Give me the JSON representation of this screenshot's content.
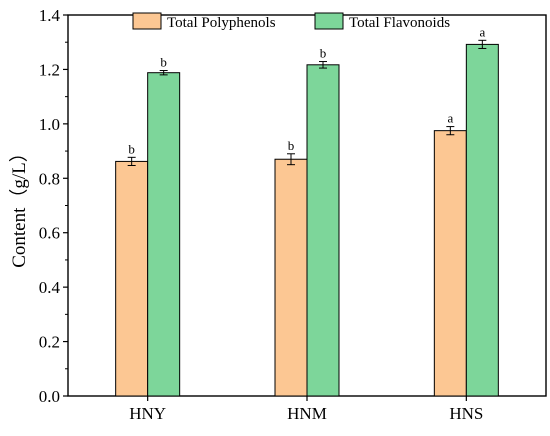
{
  "chart_data": {
    "type": "bar",
    "title": "",
    "xlabel": "",
    "ylabel": "Content（g/L）",
    "ylim": [
      0,
      1.4
    ],
    "yticks": [
      "0.0",
      "0.2",
      "0.4",
      "0.6",
      "0.8",
      "1.0",
      "1.2",
      "1.4"
    ],
    "grid": false,
    "legend_position": "top-center",
    "categories": [
      "HNY",
      "HNM",
      "HNS"
    ],
    "series": [
      {
        "name": "Total Polyphenols",
        "color": "#FCC793",
        "values": [
          0.862,
          0.87,
          0.975
        ],
        "errors": [
          0.015,
          0.02,
          0.015
        ],
        "labels": [
          "b",
          "b",
          "a"
        ]
      },
      {
        "name": "Total Flavonoids",
        "color": "#7DD69A",
        "values": [
          1.188,
          1.217,
          1.292
        ],
        "errors": [
          0.008,
          0.012,
          0.015
        ],
        "labels": [
          "b",
          "b",
          "a"
        ]
      }
    ]
  }
}
